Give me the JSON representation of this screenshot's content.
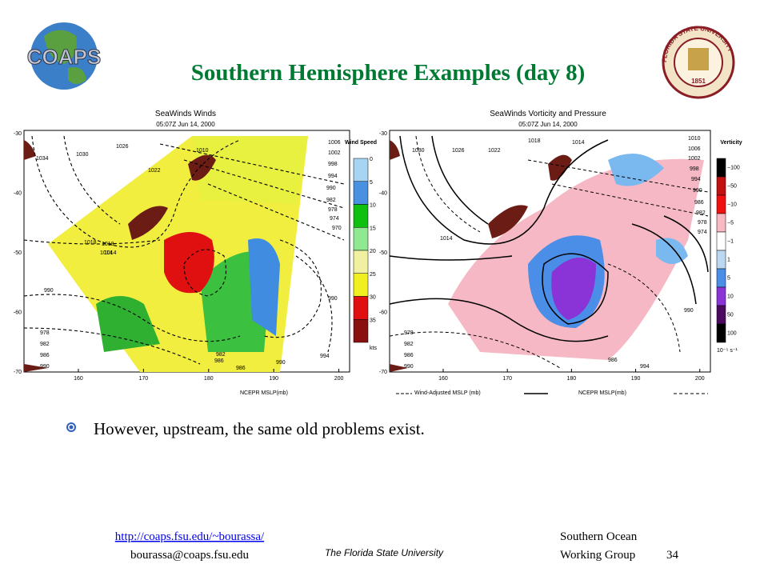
{
  "header": {
    "title": "Southern Hemisphere Examples (day 8)",
    "left_logo": "COAPS",
    "right_logo": {
      "ring": "FLORIDA STATE UNIVERSITY",
      "year": "1851"
    }
  },
  "figures": [
    {
      "title": "SeaWinds Winds",
      "subtitle": "05:07Z Jun 14, 2000",
      "yticks": [
        -30,
        -40,
        -50,
        -60,
        -70
      ],
      "xticks": [
        160,
        170,
        180,
        190,
        200
      ],
      "legend_title": "Wind Speed",
      "legend_labels": [
        "0",
        "5",
        "10",
        "15",
        "20",
        "25",
        "30",
        "35",
        "kts"
      ],
      "footer": "NCEPR MSLP(mb)",
      "contour_labels": [
        "1034",
        "1030",
        "1026",
        "1022",
        "1018",
        "1014",
        "1010",
        "1006",
        "1002",
        "998",
        "994",
        "990",
        "982",
        "978",
        "974",
        "970",
        "1018",
        "1014",
        "990",
        "986",
        "982",
        "986",
        "990",
        "994",
        "990",
        "978",
        "982",
        "986",
        "990"
      ]
    },
    {
      "title": "SeaWinds Vorticity and Pressure",
      "subtitle": "05:07Z Jun 14, 2000",
      "yticks": [
        -30,
        -40,
        -50,
        -60,
        -70
      ],
      "xticks": [
        160,
        170,
        180,
        190,
        200
      ],
      "legend_title": "Verticity",
      "legend_labels": [
        "−100",
        "−50",
        "−10",
        "−5",
        "−1",
        "1",
        "5",
        "10",
        "50",
        "100"
      ],
      "legend_unit": "10⁻⁵ s⁻¹",
      "footers": [
        "Wind-Adjusted MSLP (mb)",
        "NCEPR MSLP(mb)"
      ],
      "contour_labels": [
        "1030",
        "1026",
        "1022",
        "1018",
        "1014",
        "1010",
        "1006",
        "1002",
        "998",
        "994",
        "990",
        "986",
        "982",
        "978",
        "974",
        "1014",
        "986",
        "990",
        "994",
        "978",
        "982",
        "986",
        "990"
      ]
    }
  ],
  "bullet": "However, upstream, the same old problems exist.",
  "footer": {
    "link": "http://coaps.fsu.edu/~bourassa/",
    "email": "bourassa@coaps.fsu.edu",
    "university": "The Florida State University",
    "group_line1": "Southern Ocean",
    "group_line2": "Working Group",
    "page": "34"
  }
}
